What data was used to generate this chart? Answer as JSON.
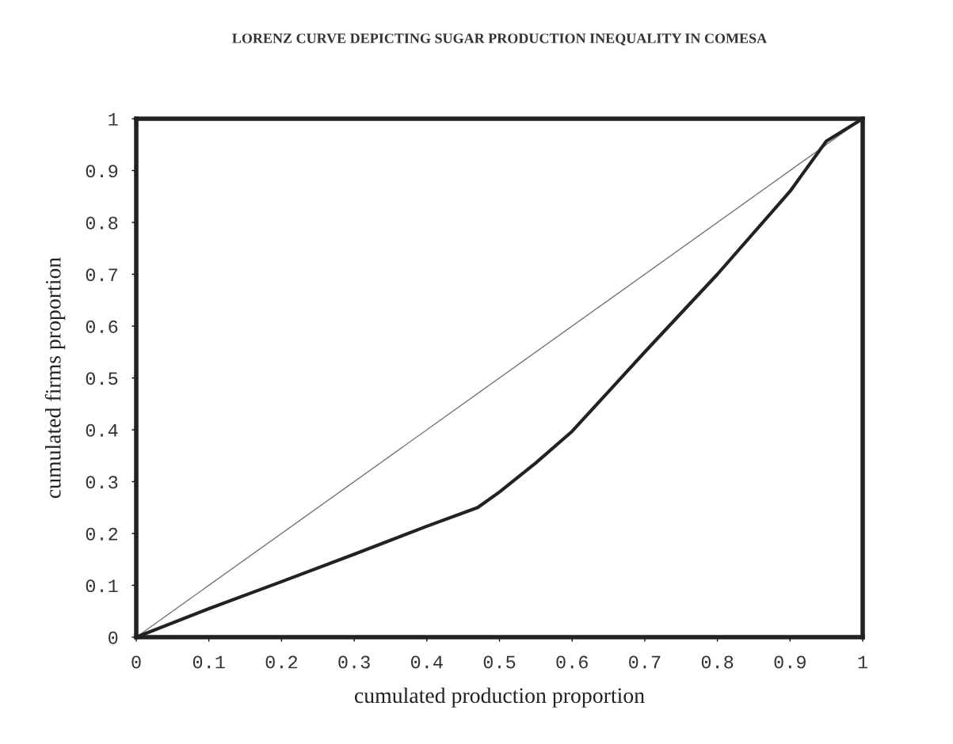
{
  "chart_data": {
    "type": "line",
    "title": "LORENZ CURVE DEPICTING SUGAR PRODUCTION INEQUALITY IN COMESA",
    "xlabel": "cumulated production proportion",
    "ylabel": "cumulated firms proportion",
    "series": [
      {
        "color": "#777777",
        "x": [
          0,
          1
        ],
        "values": [
          0,
          1
        ]
      },
      {
        "color": "#222222",
        "x": [
          0,
          0.1,
          0.2,
          0.3,
          0.4,
          0.47,
          0.5,
          0.55,
          0.6,
          0.7,
          0.8,
          0.9,
          0.95,
          1
        ],
        "values": [
          0,
          0.055,
          0.107,
          0.16,
          0.214,
          0.25,
          0.28,
          0.336,
          0.397,
          0.55,
          0.7,
          0.86,
          0.957,
          1
        ]
      }
    ],
    "xlim": [
      0,
      1
    ],
    "ylim": [
      0,
      1
    ],
    "xticks": [
      0,
      0.1,
      0.2,
      0.3,
      0.4,
      0.5,
      0.6,
      0.7,
      0.8,
      0.9,
      1
    ],
    "yticks": [
      0,
      0.1,
      0.2,
      0.3,
      0.4,
      0.5,
      0.6,
      0.7,
      0.8,
      0.9,
      1
    ],
    "grid": false,
    "legend": false,
    "marker": "none",
    "line_style": "solid"
  }
}
